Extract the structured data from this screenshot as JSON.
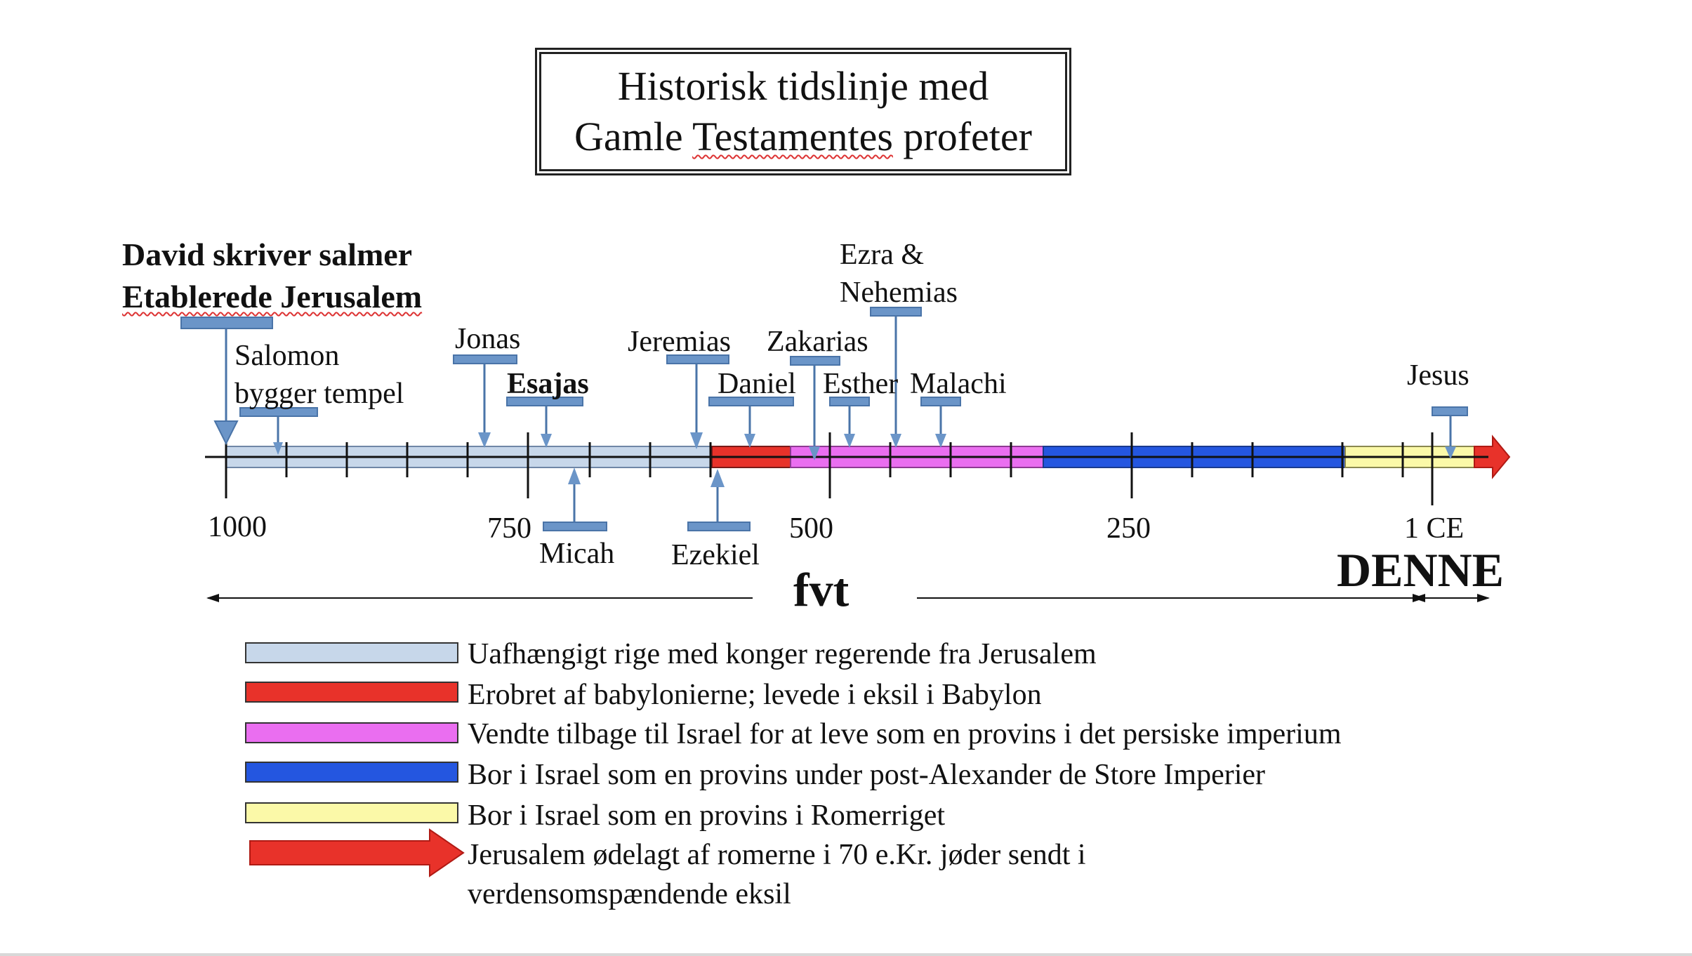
{
  "title": {
    "line1": "Historisk tidslinje med",
    "line2_a": "Gamle ",
    "line2_b": "Testamentes",
    "line2_c": " profeter"
  },
  "top_notes": {
    "line1": "David skriver salmer",
    "line2": "Etablerede Jerusalem"
  },
  "prophets_above": {
    "salomon_line1": "Salomon",
    "salomon_line2": "bygger tempel",
    "jonas": "Jonas",
    "esajas": "Esajas",
    "jeremias": "Jeremias",
    "daniel": "Daniel",
    "zakarias": "Zakarias",
    "esther": "Esther",
    "ezra_line1": "Ezra &",
    "ezra_line2": "Nehemias",
    "malachi": "Malachi",
    "jesus": "Jesus"
  },
  "prophets_below": {
    "micah": "Micah",
    "ezekiel": "Ezekiel"
  },
  "axis": {
    "t1000": "1000",
    "t750": "750",
    "t500": "500",
    "t250": "250",
    "t1ce": "1 CE",
    "fvt": "fvt",
    "denne": "DENNE"
  },
  "legend": [
    {
      "color": "#c7d7ea",
      "text": "Uafhængigt rige med konger regerende fra Jerusalem"
    },
    {
      "color": "#e8322a",
      "text": "Erobret af babylonierne; levede i eksil i Babylon"
    },
    {
      "color": "#ea6ef0",
      "text": "Vendte tilbage til Israel for at leve som en provins i det persiske imperium"
    },
    {
      "color": "#2456e0",
      "text": "Bor i Israel som en provins under post-Alexander de Store Imperier"
    },
    {
      "color": "#fbf9a8",
      "text": "Bor i Israel som en provins i Romerriget"
    },
    {
      "color": "#e8322a",
      "text": "Jerusalem ødelagt af romerne i 70 e.Kr. jøder sendt i",
      "text2": "verdensomspændende eksil"
    }
  ],
  "colors": {
    "marker": "#6b95c8",
    "marker_stroke": "#4a74a8",
    "kingdom": "#c7d7ea",
    "babylon": "#e8322a",
    "persia": "#ea6ef0",
    "greek": "#2456e0",
    "rome": "#fbf9a8",
    "arrow": "#e8322a"
  }
}
